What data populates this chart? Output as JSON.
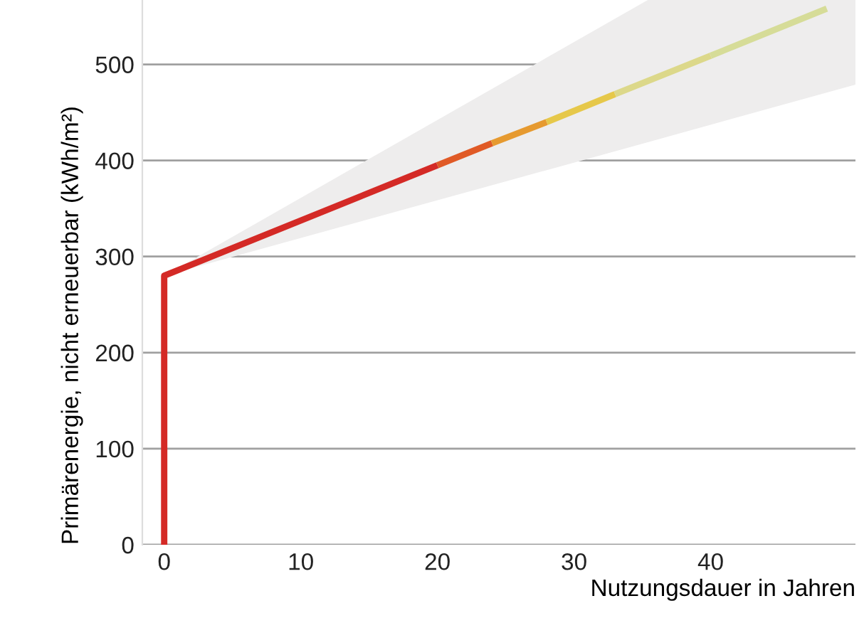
{
  "chart_data": {
    "type": "line",
    "xlabel": "Nutzungsdauer in Jahren",
    "ylabel": "Primärenergie, nicht erneuerbar (kWh/m²)",
    "xlim": [
      -1.6,
      50.6
    ],
    "ylim": [
      0,
      567
    ],
    "xticks": [
      0,
      10,
      20,
      30,
      40
    ],
    "yticks": [
      0,
      100,
      200,
      300,
      400,
      500
    ],
    "grid": "y",
    "series": [
      {
        "x": [
          0,
          35.4,
          50.6
        ],
        "values": [
          null,
          null,
          null
        ],
        "lower": [
          280,
          419,
          479
        ],
        "upper": [
          280,
          567,
          567
        ],
        "color": "#eeeded"
      },
      {
        "x": [
          0,
          0,
          20
        ],
        "values": [
          0,
          280,
          395
        ],
        "color": "#d42a26"
      },
      {
        "x": [
          20,
          24
        ],
        "values": [
          395,
          418
        ],
        "color": "#e05a26"
      },
      {
        "x": [
          24,
          28
        ],
        "values": [
          418,
          440
        ],
        "color": "#e69a30"
      },
      {
        "x": [
          28,
          33
        ],
        "values": [
          440,
          469
        ],
        "color": "#e6c84a"
      },
      {
        "x": [
          33,
          40
        ],
        "values": [
          469,
          509
        ],
        "color": "#dcd88a"
      },
      {
        "x": [
          40,
          48.5
        ],
        "values": [
          509,
          558
        ],
        "color": "#d6dc98"
      }
    ]
  }
}
